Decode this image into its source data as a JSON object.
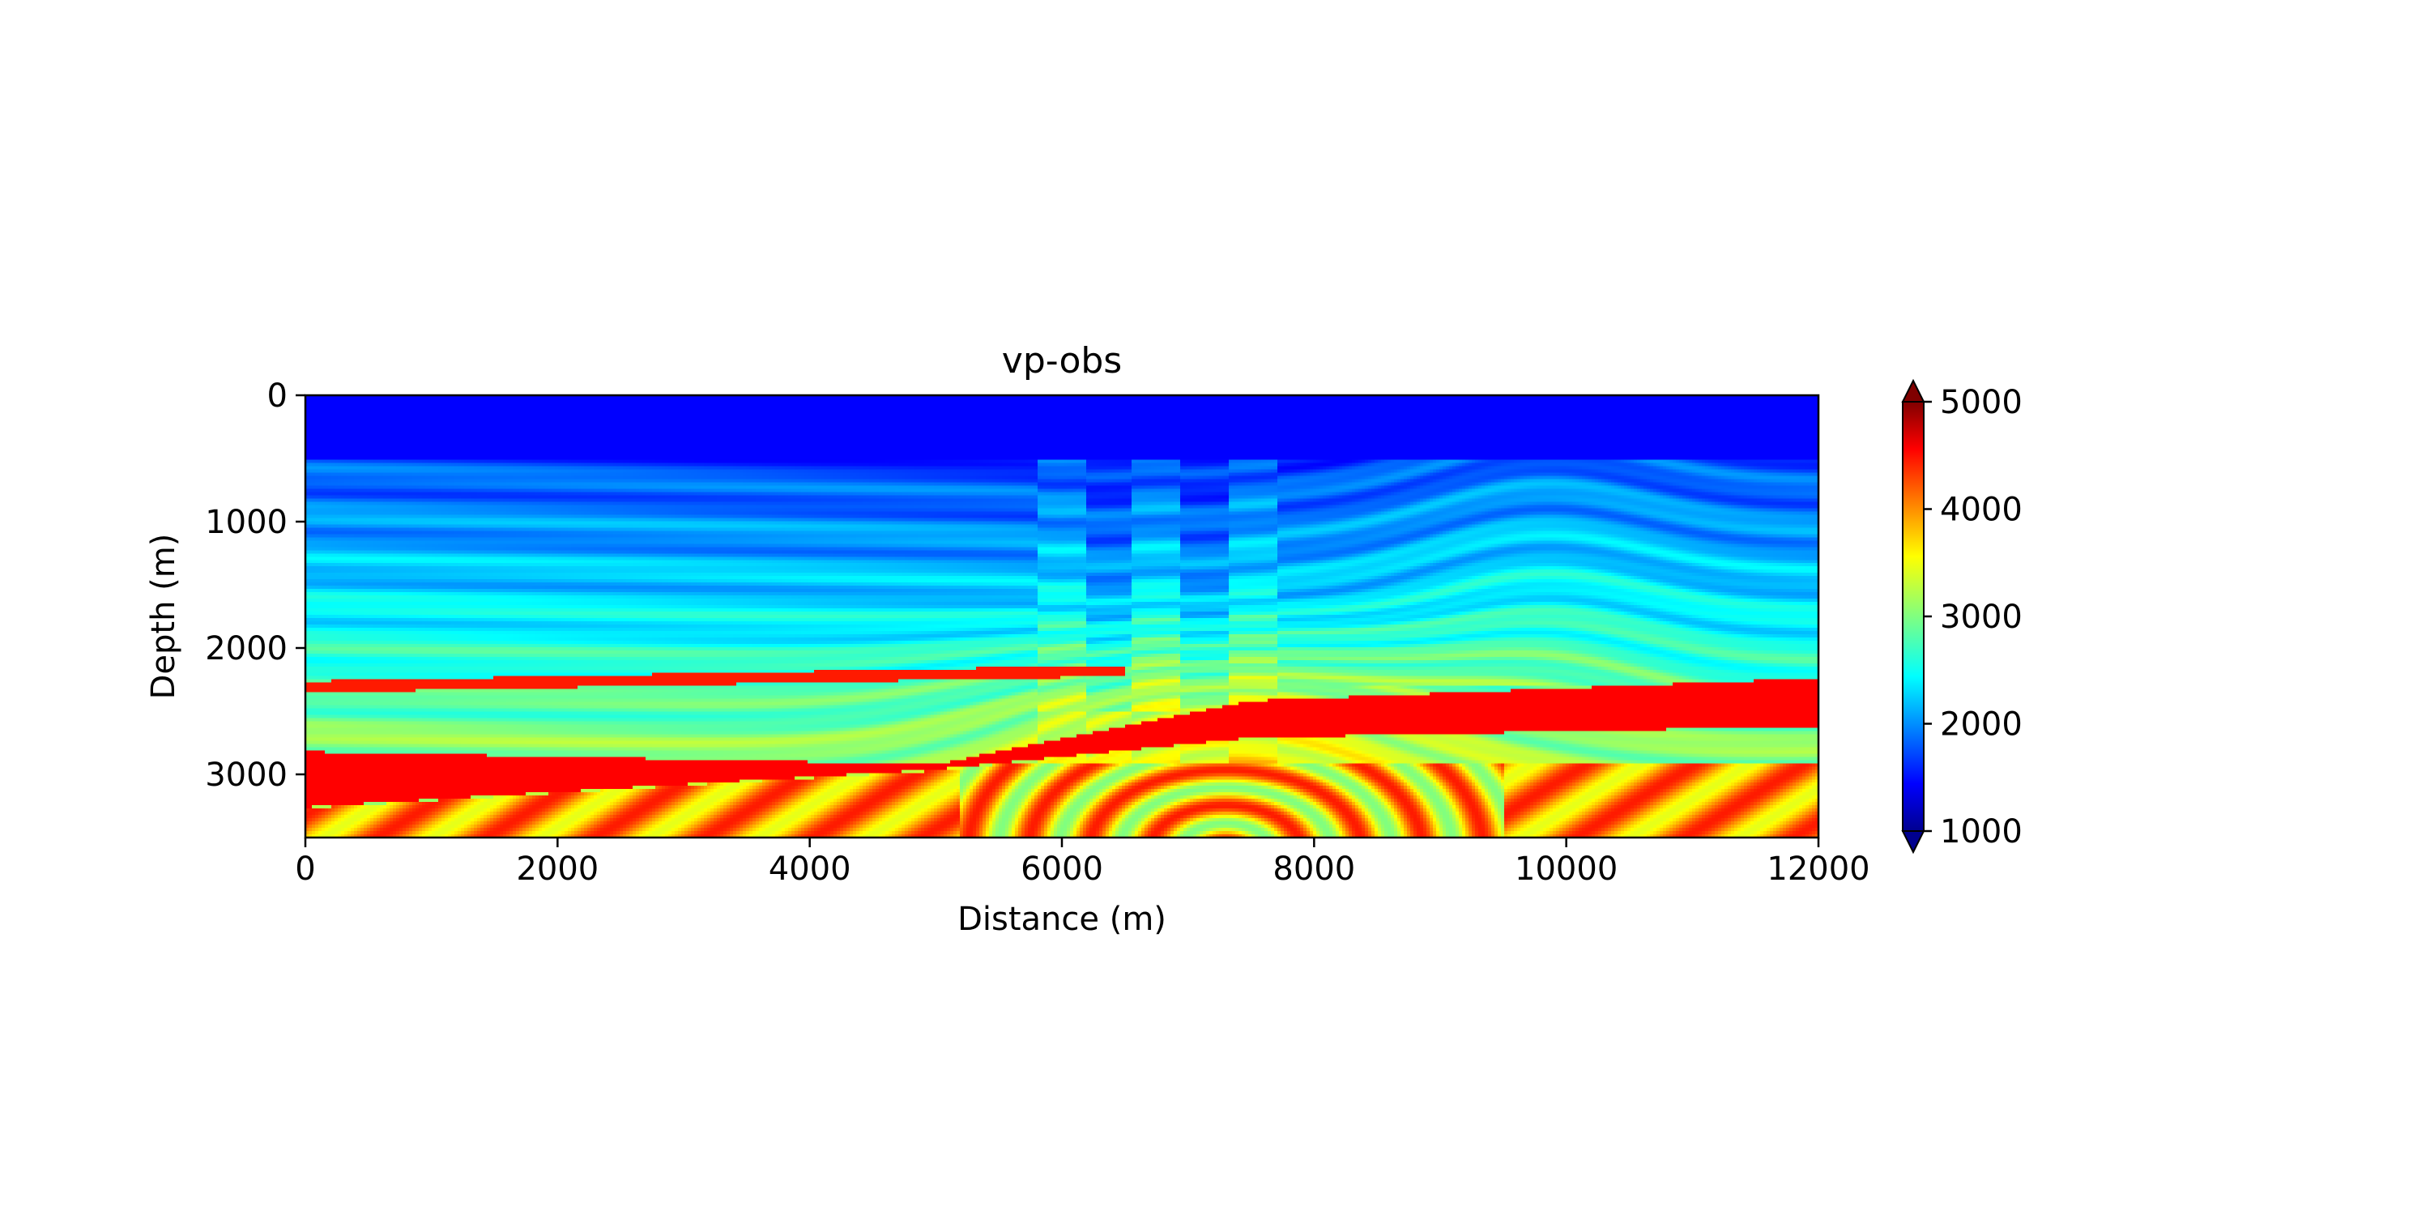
{
  "chart_data": {
    "type": "heatmap",
    "title": "vp-obs",
    "xlabel": "Distance (m)",
    "ylabel": "Depth (m)",
    "xlim": [
      0,
      12000
    ],
    "ylim": [
      3500,
      0
    ],
    "x_ticks": [
      0,
      2000,
      4000,
      6000,
      8000,
      10000,
      12000
    ],
    "y_ticks": [
      0,
      1000,
      2000,
      3000
    ],
    "y_inverted": true,
    "grid": false,
    "colormap": "jet",
    "colorbar": {
      "min": 1000,
      "max": 5000,
      "ticks": [
        1000,
        2000,
        3000,
        4000,
        5000
      ],
      "extend": "both",
      "placement": "right"
    },
    "description_of_field": {
      "water_layer": {
        "depth_range": [
          0,
          500
        ],
        "value": 1500
      },
      "fault_block_distance_range": [
        5800,
        7700
      ],
      "dome_center_distance": 7300,
      "high_velocity_layer_left_depth": [
        2800,
        3300
      ],
      "high_velocity_layer_right_depth": [
        2200,
        2600
      ]
    }
  }
}
